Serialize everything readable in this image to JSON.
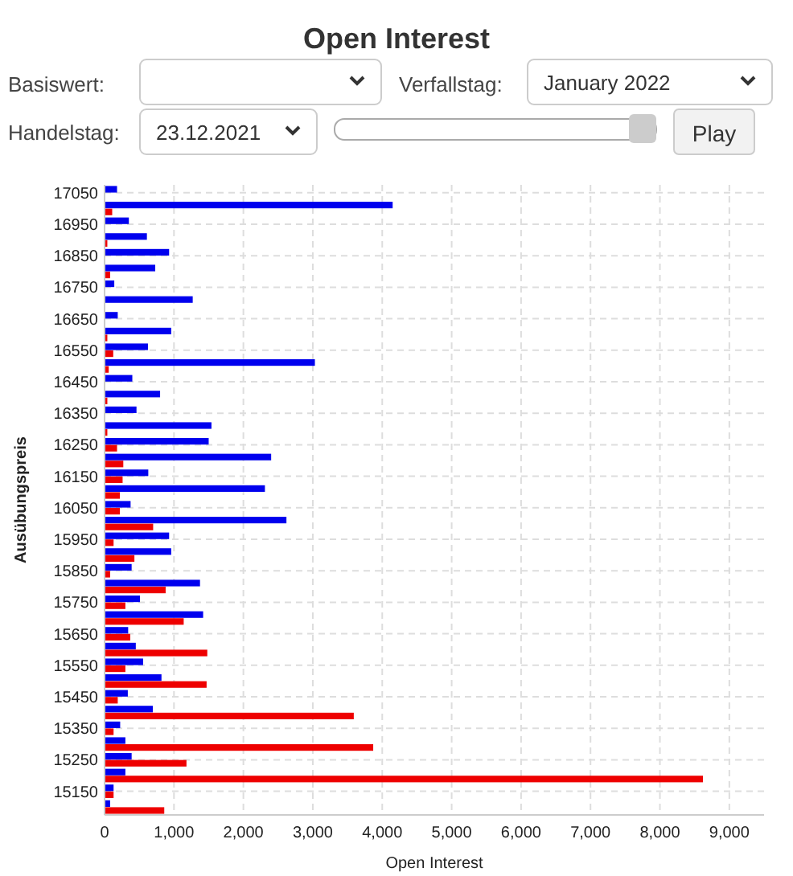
{
  "chart_data": {
    "type": "bar",
    "orientation": "horizontal",
    "title": "Open Interest",
    "xlabel": "Open Interest",
    "ylabel": "Ausübungspreis",
    "annotations": [
      "Basiswert:",
      "Verfallstag:",
      "January 2022",
      "Handelstag:",
      "23.12.2021",
      "Play"
    ],
    "categories": [
      "17050",
      null,
      "16950",
      null,
      "16850",
      null,
      "16750",
      null,
      "16650",
      null,
      "16550",
      null,
      "16450",
      null,
      "16350",
      null,
      "16250",
      null,
      "16150",
      null,
      "16050",
      null,
      "15950",
      null,
      "15850",
      null,
      "15750",
      null,
      "15650",
      null,
      "15550",
      null,
      "15450",
      null,
      "15350",
      null,
      "15250",
      null,
      "15150",
      null
    ],
    "series": [
      {
        "color": "#0000ee",
        "values": [
          180,
          4150,
          350,
          610,
          930,
          730,
          140,
          1270,
          190,
          960,
          625,
          3030,
          400,
          800,
          460,
          1540,
          1500,
          2400,
          630,
          2310,
          375,
          2620,
          930,
          960,
          390,
          1375,
          510,
          1420,
          340,
          450,
          555,
          820,
          335,
          695,
          225,
          300,
          390,
          300,
          130,
          80
        ]
      },
      {
        "color": "#ee0000",
        "values": [
          0,
          110,
          0,
          40,
          0,
          80,
          0,
          0,
          0,
          40,
          125,
          60,
          0,
          40,
          0,
          40,
          180,
          270,
          260,
          220,
          220,
          700,
          130,
          430,
          80,
          880,
          300,
          1140,
          370,
          1480,
          300,
          1470,
          190,
          3590,
          130,
          3870,
          1180,
          8620,
          130,
          860
        ]
      }
    ],
    "xlim": [
      0,
      9500
    ],
    "xticks": [
      0,
      {
        "value": 1000,
        "label": "1,000"
      },
      {
        "value": 2000,
        "label": "2,000"
      },
      {
        "value": 3000,
        "label": "3,000"
      },
      {
        "value": 4000,
        "label": "4,000"
      },
      {
        "value": 5000,
        "label": "5,000"
      },
      {
        "value": 6000,
        "label": "6,000"
      },
      {
        "value": 7000,
        "label": "7,000"
      },
      {
        "value": 8000,
        "label": "8,000"
      },
      {
        "value": 9000,
        "label": "9,000"
      }
    ],
    "grid": true
  }
}
